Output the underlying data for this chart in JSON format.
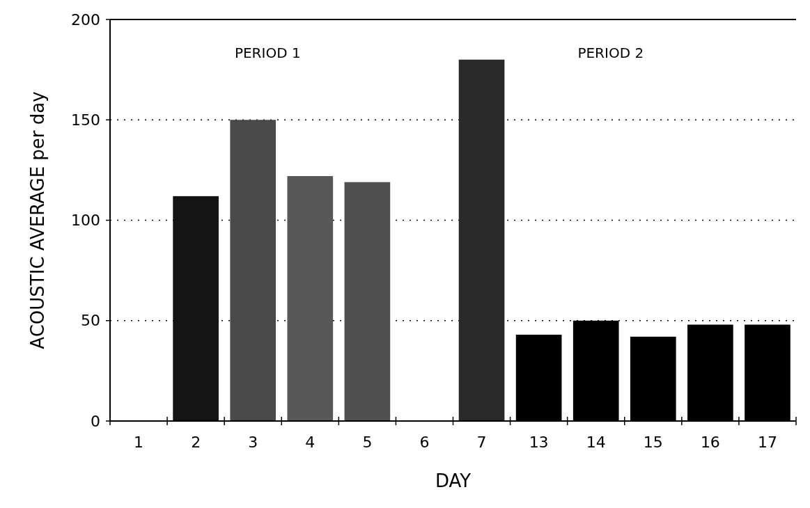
{
  "chart_data": {
    "type": "bar",
    "xlabel": "DAY",
    "ylabel": "ACOUSTIC AVERAGE per day",
    "categories": [
      "1",
      "2",
      "3",
      "4",
      "5",
      "6",
      "7",
      "13",
      "14",
      "15",
      "16",
      "17"
    ],
    "values": [
      0,
      112,
      150,
      122,
      119,
      0,
      180,
      43,
      50,
      42,
      48,
      48
    ],
    "colors": [
      "#000000",
      "#141414",
      "#4a4a4a",
      "#585858",
      "#505050",
      "#000000",
      "#2a2a2a",
      "#000000",
      "#000000",
      "#000000",
      "#000000",
      "#000000"
    ],
    "ylim": [
      0,
      200
    ],
    "yticks": [
      0,
      50,
      100,
      150,
      200
    ],
    "grid": "y",
    "annotations": [
      "PERIOD 1",
      "PERIOD 2"
    ]
  }
}
